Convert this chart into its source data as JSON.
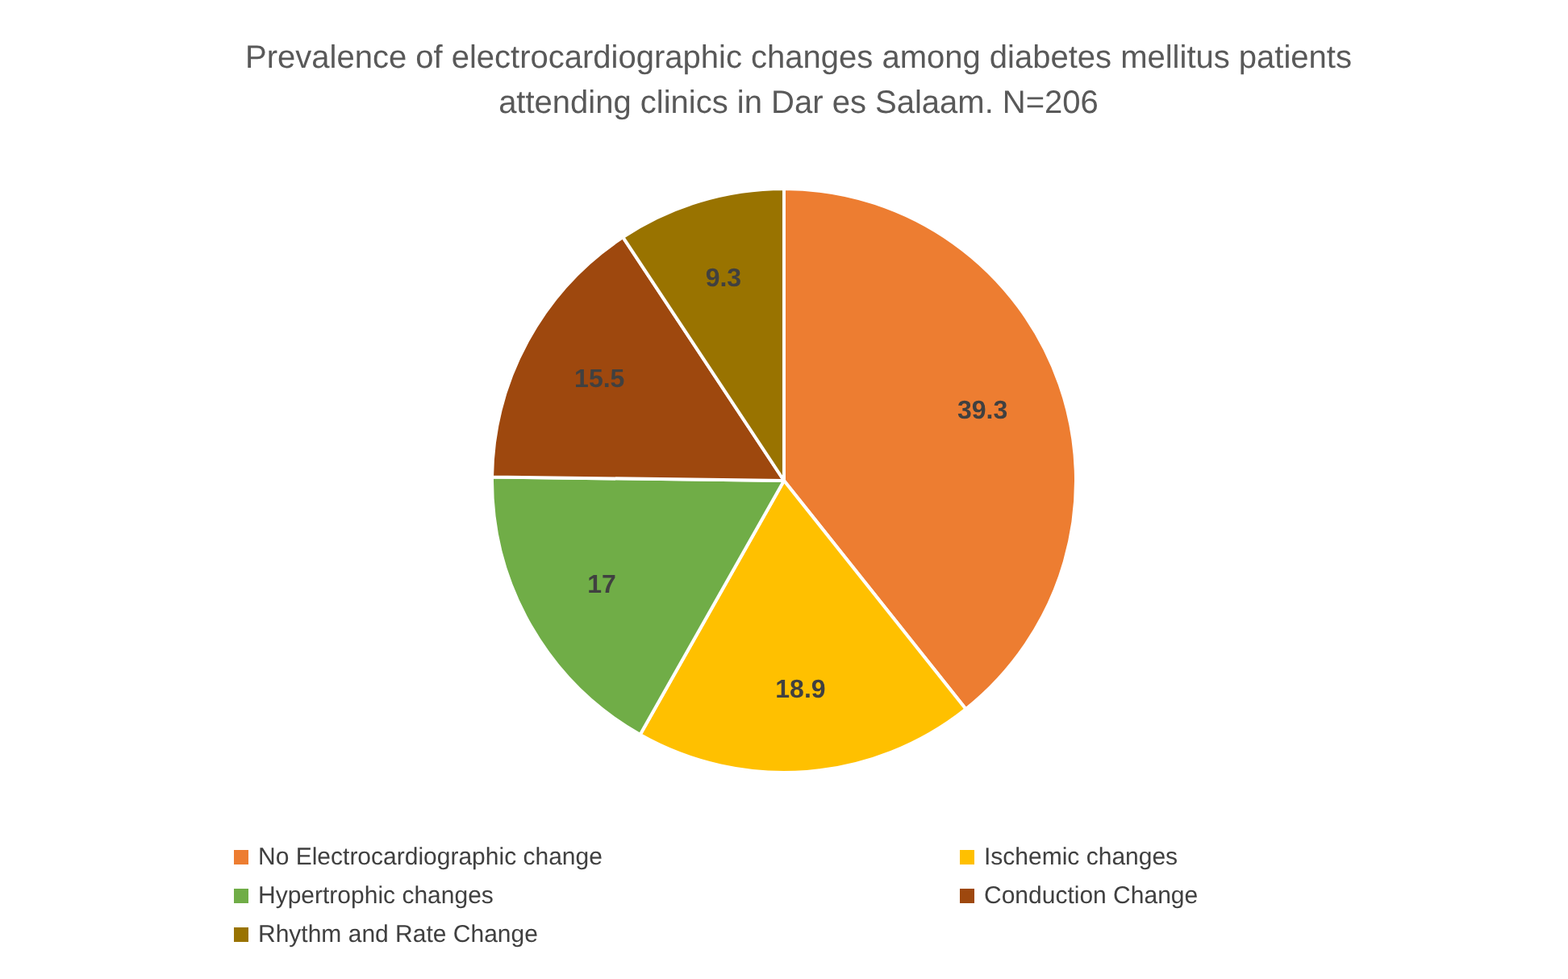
{
  "chart_data": {
    "type": "pie",
    "title": "Prevalence of electrocardiographic changes among diabetes mellitus patients attending clinics in Dar es Salaam. N=206",
    "categories": [
      "No Electrocardiographic change",
      "Ischemic changes",
      "Hypertrophic changes",
      "Conduction Change",
      "Rhythm and Rate Change"
    ],
    "values": [
      39.3,
      18.9,
      17,
      15.5,
      9.3
    ],
    "colors": [
      "#ed7d31",
      "#ffc000",
      "#70ad47",
      "#9e480e",
      "#997300"
    ],
    "data_labels": true,
    "legend": "bottom"
  }
}
